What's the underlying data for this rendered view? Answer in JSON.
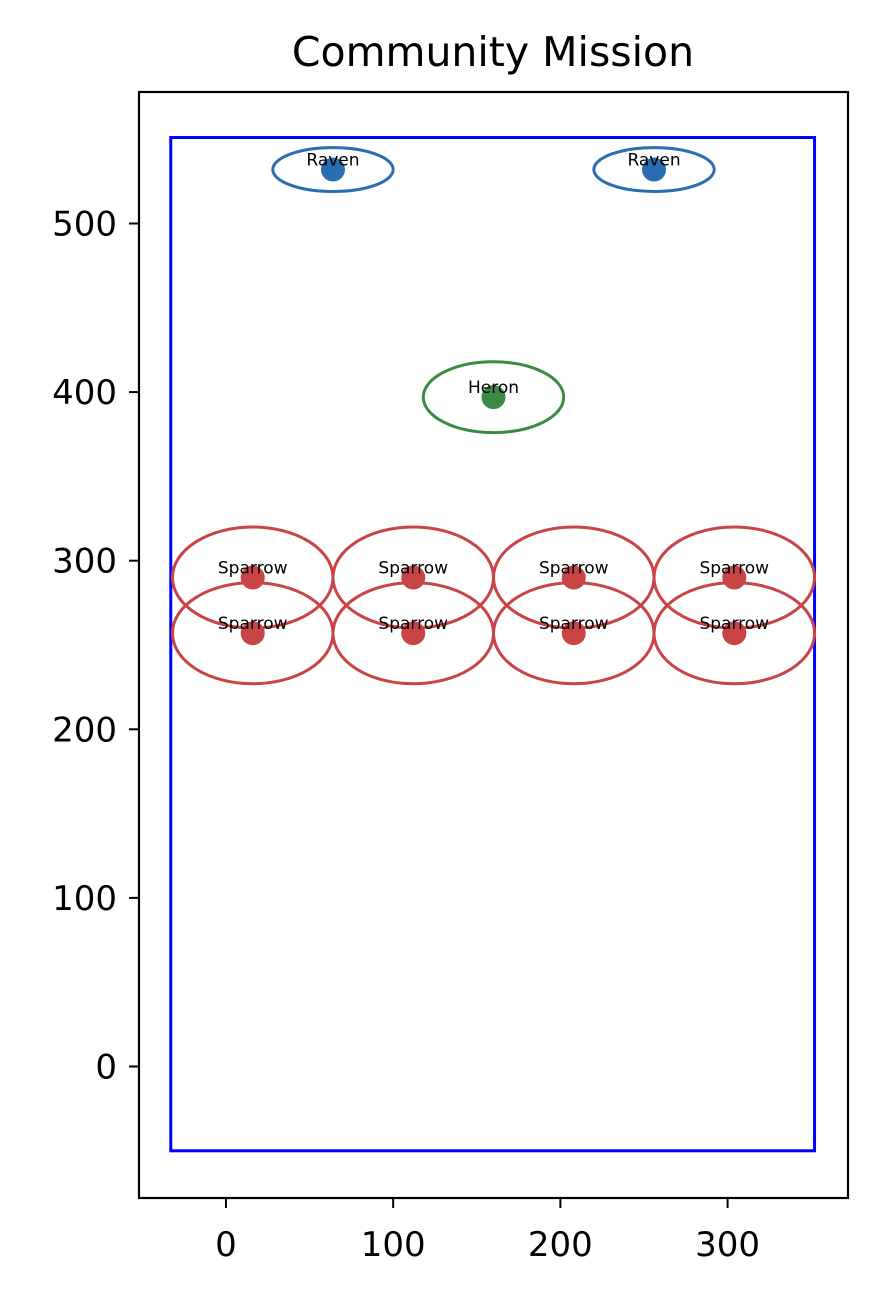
{
  "chart_data": {
    "type": "scatter",
    "title": "Community Mission",
    "xlabel": "",
    "ylabel": "",
    "xlim": [
      -52,
      372
    ],
    "ylim": [
      -78,
      578
    ],
    "x_ticks": [
      0,
      100,
      200,
      300
    ],
    "y_ticks": [
      0,
      100,
      200,
      300,
      400,
      500
    ],
    "x_tick_labels": [
      "0",
      "100",
      "200",
      "300"
    ],
    "y_tick_labels": [
      "0",
      "100",
      "200",
      "300",
      "400",
      "500"
    ],
    "grid": false,
    "legend": "none",
    "boundary": {
      "x0": -33,
      "y0": -50,
      "x1": 352,
      "y1": 551,
      "color": "#0000ff"
    },
    "colors": {
      "Raven": "#2b6db3",
      "Heron": "#3a8a46",
      "Sparrow": "#c94444"
    },
    "points": [
      {
        "label": "Raven",
        "x": 64,
        "y": 532,
        "rx": 36,
        "ry": 13
      },
      {
        "label": "Raven",
        "x": 256,
        "y": 532,
        "rx": 36,
        "ry": 13
      },
      {
        "label": "Heron",
        "x": 160,
        "y": 397,
        "rx": 42,
        "ry": 21
      },
      {
        "label": "Sparrow",
        "x": 16,
        "y": 290,
        "rx": 48,
        "ry": 30
      },
      {
        "label": "Sparrow",
        "x": 112,
        "y": 290,
        "rx": 48,
        "ry": 30
      },
      {
        "label": "Sparrow",
        "x": 208,
        "y": 290,
        "rx": 48,
        "ry": 30
      },
      {
        "label": "Sparrow",
        "x": 304,
        "y": 290,
        "rx": 48,
        "ry": 30
      },
      {
        "label": "Sparrow",
        "x": 16,
        "y": 257,
        "rx": 48,
        "ry": 30
      },
      {
        "label": "Sparrow",
        "x": 112,
        "y": 257,
        "rx": 48,
        "ry": 30
      },
      {
        "label": "Sparrow",
        "x": 208,
        "y": 257,
        "rx": 48,
        "ry": 30
      },
      {
        "label": "Sparrow",
        "x": 304,
        "y": 257,
        "rx": 48,
        "ry": 30
      }
    ]
  }
}
